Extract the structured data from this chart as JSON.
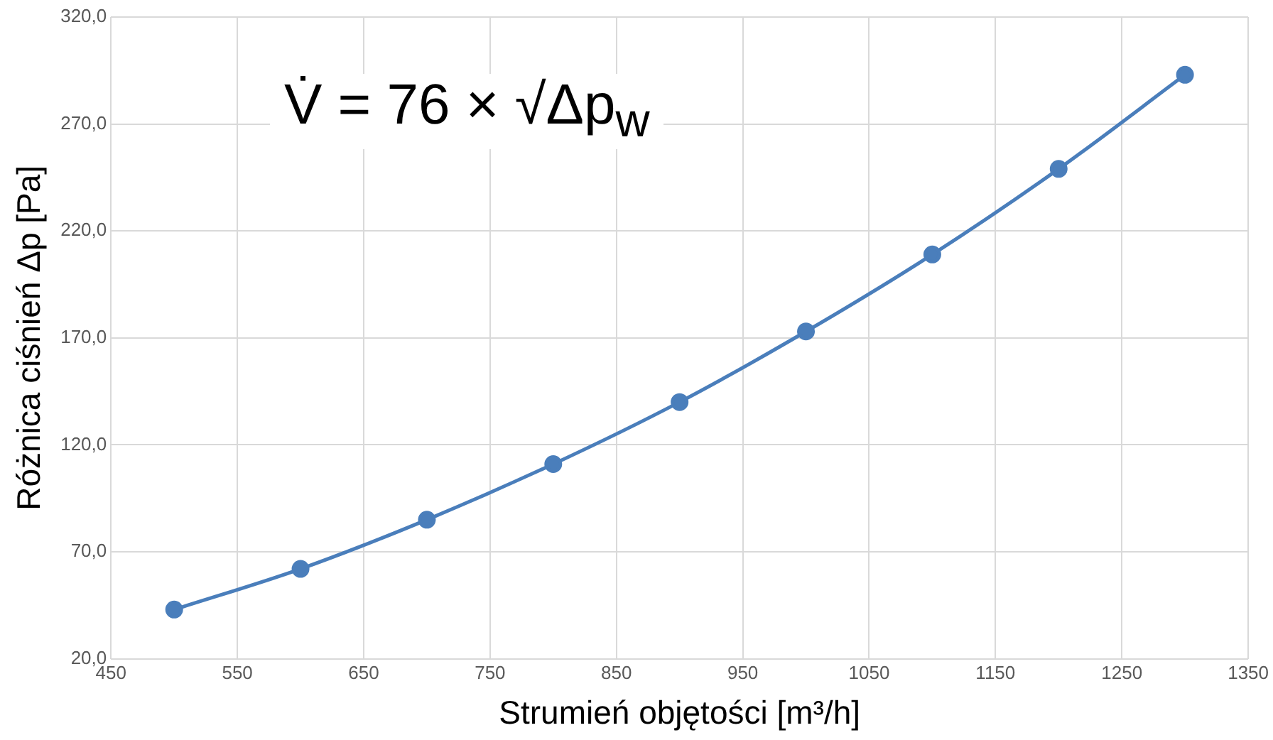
{
  "chart_data": {
    "type": "line",
    "xlabel": "Strumień objętości [m³/h]",
    "ylabel": "Różnica ciśnień Δp [Pa]",
    "annotations": [
      "V̇ = 76 × √Δp$_{w}$"
    ],
    "x": [
      500,
      600,
      700,
      800,
      900,
      1000,
      1100,
      1200,
      1300
    ],
    "series": [
      {
        "color": "#4a7ebb",
        "values": [
          43,
          62,
          85,
          111,
          140,
          173,
          209,
          249,
          293
        ]
      }
    ],
    "xlim": [
      450,
      1350
    ],
    "xticks": [
      450,
      550,
      650,
      750,
      850,
      950,
      1050,
      1150,
      1250,
      1350
    ],
    "ylim": [
      20,
      320
    ],
    "yticks": [
      {
        "value": 20,
        "label": "20,0"
      },
      {
        "value": 70,
        "label": "70,0"
      },
      {
        "value": 120,
        "label": "120,0"
      },
      {
        "value": 170,
        "label": "170,0"
      },
      {
        "value": 220,
        "label": "220,0"
      },
      {
        "value": 270,
        "label": "270,0"
      },
      {
        "value": 320,
        "label": "320,0"
      }
    ],
    "grid": true,
    "marker": "circle",
    "line_style": "solid",
    "legend": false
  }
}
